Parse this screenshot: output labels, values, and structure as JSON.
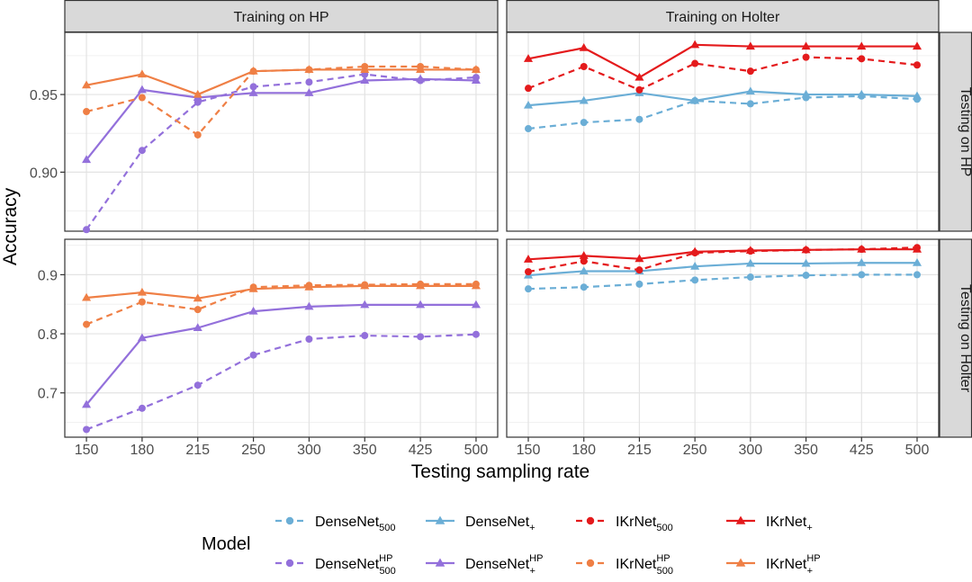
{
  "chart_data": {
    "type": "line",
    "xlabel": "Testing sampling rate",
    "ylabel": "Accuracy",
    "x_categories": [
      "150",
      "180",
      "215",
      "250",
      "300",
      "350",
      "425",
      "500"
    ],
    "col_facets": [
      "Training on HP",
      "Training on Holter"
    ],
    "row_facets": [
      "Testing on HP",
      "Testing on Holter"
    ],
    "rows": [
      {
        "ylim": [
          0.862,
          0.99
        ],
        "yticks": [
          0.9,
          0.95
        ],
        "ytick_labels": [
          "0.90",
          "0.95"
        ]
      },
      {
        "ylim": [
          0.625,
          0.96
        ],
        "yticks": [
          0.7,
          0.8,
          0.9
        ],
        "ytick_labels": [
          "0.7",
          "0.8",
          "0.9"
        ]
      }
    ],
    "legend": {
      "title": "Model",
      "position": "bottom",
      "entries": [
        {
          "key": "dn500",
          "base": "DenseNet",
          "sub": "500",
          "sup": ""
        },
        {
          "key": "dnplus",
          "base": "DenseNet",
          "sub": "+",
          "sup": ""
        },
        {
          "key": "ik500",
          "base": "IKrNet",
          "sub": "500",
          "sup": ""
        },
        {
          "key": "ikplus",
          "base": "IKrNet",
          "sub": "+",
          "sup": ""
        },
        {
          "key": "dn500hp",
          "base": "DenseNet",
          "sub": "500",
          "sup": "HP"
        },
        {
          "key": "dnplushp",
          "base": "DenseNet",
          "sub": "+",
          "sup": "HP"
        },
        {
          "key": "ik500hp",
          "base": "IKrNet",
          "sub": "500",
          "sup": "HP"
        },
        {
          "key": "ikplushp",
          "base": "IKrNet",
          "sub": "+",
          "sup": "HP"
        }
      ]
    },
    "series_styles": {
      "dn500": {
        "color": "#6BAED6",
        "dashed": true,
        "shape": "circle"
      },
      "dnplus": {
        "color": "#6BAED6",
        "dashed": false,
        "shape": "triangle"
      },
      "ik500": {
        "color": "#E41A1C",
        "dashed": true,
        "shape": "circle"
      },
      "ikplus": {
        "color": "#E41A1C",
        "dashed": false,
        "shape": "triangle"
      },
      "dn500hp": {
        "color": "#9370DB",
        "dashed": true,
        "shape": "circle"
      },
      "dnplushp": {
        "color": "#9370DB",
        "dashed": false,
        "shape": "triangle"
      },
      "ik500hp": {
        "color": "#EF7F45",
        "dashed": true,
        "shape": "circle"
      },
      "ikplushp": {
        "color": "#EF7F45",
        "dashed": false,
        "shape": "triangle"
      }
    },
    "panels": [
      {
        "row": 0,
        "col": 0,
        "series": [
          {
            "key": "dn500hp",
            "values": [
              0.863,
              0.914,
              0.945,
              0.955,
              0.958,
              0.963,
              0.959,
              0.961
            ]
          },
          {
            "key": "dnplushp",
            "values": [
              0.908,
              0.953,
              0.948,
              0.951,
              0.951,
              0.959,
              0.96,
              0.959
            ]
          },
          {
            "key": "ik500hp",
            "values": [
              0.939,
              0.948,
              0.924,
              0.965,
              0.966,
              0.968,
              0.968,
              0.966
            ]
          },
          {
            "key": "ikplushp",
            "values": [
              0.956,
              0.963,
              0.95,
              0.965,
              0.966,
              0.966,
              0.966,
              0.966
            ]
          }
        ]
      },
      {
        "row": 0,
        "col": 1,
        "series": [
          {
            "key": "dn500",
            "values": [
              0.928,
              0.932,
              0.934,
              0.946,
              0.944,
              0.948,
              0.949,
              0.947
            ]
          },
          {
            "key": "dnplus",
            "values": [
              0.943,
              0.946,
              0.951,
              0.946,
              0.952,
              0.95,
              0.95,
              0.949
            ]
          },
          {
            "key": "ik500",
            "values": [
              0.954,
              0.968,
              0.953,
              0.97,
              0.965,
              0.974,
              0.973,
              0.969
            ]
          },
          {
            "key": "ikplus",
            "values": [
              0.973,
              0.98,
              0.961,
              0.982,
              0.981,
              0.981,
              0.981,
              0.981
            ]
          }
        ]
      },
      {
        "row": 1,
        "col": 0,
        "series": [
          {
            "key": "dn500hp",
            "values": [
              0.638,
              0.674,
              0.713,
              0.764,
              0.791,
              0.797,
              0.795,
              0.799
            ]
          },
          {
            "key": "dnplushp",
            "values": [
              0.68,
              0.793,
              0.81,
              0.838,
              0.846,
              0.849,
              0.849,
              0.849
            ]
          },
          {
            "key": "ik500hp",
            "values": [
              0.816,
              0.854,
              0.841,
              0.879,
              0.882,
              0.883,
              0.884,
              0.884
            ]
          },
          {
            "key": "ikplushp",
            "values": [
              0.861,
              0.87,
              0.86,
              0.876,
              0.879,
              0.881,
              0.881,
              0.881
            ]
          }
        ]
      },
      {
        "row": 1,
        "col": 1,
        "series": [
          {
            "key": "dn500",
            "values": [
              0.876,
              0.879,
              0.884,
              0.891,
              0.896,
              0.899,
              0.9,
              0.9
            ]
          },
          {
            "key": "dnplus",
            "values": [
              0.899,
              0.906,
              0.906,
              0.914,
              0.919,
              0.919,
              0.92,
              0.92
            ]
          },
          {
            "key": "ik500",
            "values": [
              0.905,
              0.923,
              0.908,
              0.937,
              0.94,
              0.942,
              0.943,
              0.946
            ]
          },
          {
            "key": "ikplus",
            "values": [
              0.926,
              0.932,
              0.927,
              0.939,
              0.941,
              0.942,
              0.943,
              0.943
            ]
          }
        ]
      }
    ]
  }
}
